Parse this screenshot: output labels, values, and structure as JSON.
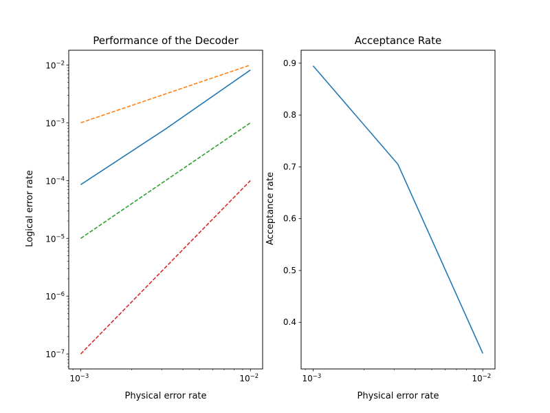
{
  "chart_data": [
    {
      "type": "line",
      "title": "Performance of the Decoder",
      "xlabel": "Physical error rate",
      "ylabel": "Logical error rate",
      "xscale": "log",
      "yscale": "log",
      "xlim": [
        0.00085,
        0.0118
      ],
      "ylim": [
        5.5e-08,
        0.018
      ],
      "xticks": [
        {
          "base": "10",
          "exp": "−3"
        },
        {
          "base": "10",
          "exp": "−2"
        }
      ],
      "yticks": [
        {
          "base": "10",
          "exp": "−7",
          "value": 1e-07
        },
        {
          "base": "10",
          "exp": "−6",
          "value": 1e-06
        },
        {
          "base": "10",
          "exp": "−5",
          "value": 1e-05
        },
        {
          "base": "10",
          "exp": "−4",
          "value": 0.0001
        },
        {
          "base": "10",
          "exp": "−3",
          "value": 0.001
        },
        {
          "base": "10",
          "exp": "−2",
          "value": 0.01
        }
      ],
      "legend": "none",
      "grid": false,
      "series": [
        {
          "color": "#1f77b4",
          "dash": "solid",
          "x": [
            0.001,
            0.00316,
            0.01
          ],
          "y": [
            8.5e-05,
            0.00078,
            0.0082
          ]
        },
        {
          "color": "#ff7f0e",
          "dash": "dashed",
          "x": [
            0.001,
            0.01
          ],
          "y": [
            0.001,
            0.01
          ]
        },
        {
          "color": "#2ca02c",
          "dash": "dashed",
          "x": [
            0.001,
            0.01
          ],
          "y": [
            1e-05,
            0.001
          ]
        },
        {
          "color": "#d62728",
          "dash": "dashed",
          "x": [
            0.001,
            0.01
          ],
          "y": [
            1e-07,
            0.0001
          ]
        }
      ]
    },
    {
      "type": "line",
      "title": "Acceptance Rate",
      "xlabel": "Physical error rate",
      "ylabel": "Acceptance rate",
      "xscale": "log",
      "yscale": "linear",
      "xlim": [
        0.00085,
        0.0118
      ],
      "ylim": [
        0.31,
        0.925
      ],
      "xticks": [
        {
          "base": "10",
          "exp": "−3"
        },
        {
          "base": "10",
          "exp": "−2"
        }
      ],
      "yticks": [
        {
          "label": "0.4",
          "value": 0.4
        },
        {
          "label": "0.5",
          "value": 0.5
        },
        {
          "label": "0.6",
          "value": 0.6
        },
        {
          "label": "0.7",
          "value": 0.7
        },
        {
          "label": "0.8",
          "value": 0.8
        },
        {
          "label": "0.9",
          "value": 0.9
        }
      ],
      "legend": "none",
      "grid": false,
      "series": [
        {
          "color": "#1f77b4",
          "dash": "solid",
          "x": [
            0.001,
            0.00316,
            0.01
          ],
          "y": [
            0.895,
            0.705,
            0.34
          ]
        }
      ]
    }
  ]
}
